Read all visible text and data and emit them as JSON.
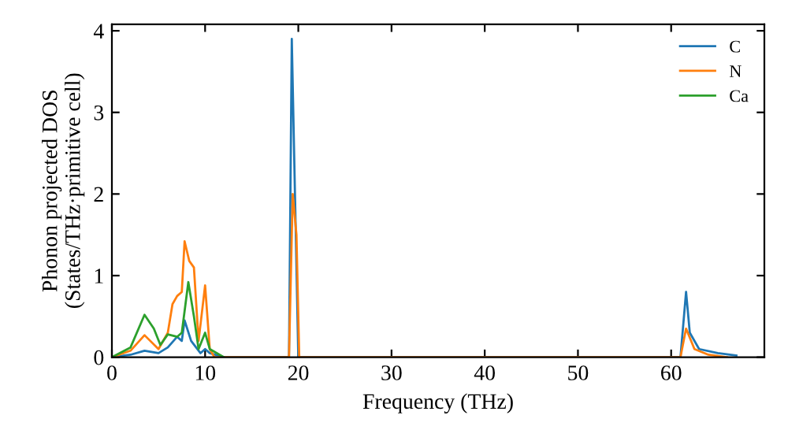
{
  "chart_data": {
    "type": "line",
    "xlabel": "Frequency (THz)",
    "ylabel": "Phonon projected DOS\n(States/THz·primitive cell)",
    "xlim": [
      0,
      70
    ],
    "ylim": [
      0,
      4.08
    ],
    "xticks": [
      0,
      10,
      20,
      30,
      40,
      50,
      60
    ],
    "yticks": [
      0,
      1,
      2,
      3,
      4
    ],
    "legend": "top right",
    "grid": false,
    "series": [
      {
        "name": "C",
        "color": "#1f77b4",
        "x": [
          0,
          2,
          3.5,
          5,
          6,
          7,
          7.5,
          7.8,
          8.5,
          9.5,
          10,
          10.5,
          12,
          19,
          19.3,
          20,
          61,
          61.6,
          62,
          63,
          65,
          67
        ],
        "values": [
          0,
          0.03,
          0.08,
          0.05,
          0.12,
          0.25,
          0.2,
          0.45,
          0.2,
          0.05,
          0.1,
          0.05,
          0,
          0,
          3.9,
          0,
          0,
          0.8,
          0.3,
          0.1,
          0.05,
          0.02
        ]
      },
      {
        "name": "N",
        "color": "#ff7f0e",
        "x": [
          0,
          2,
          3.5,
          5,
          6,
          6.5,
          7,
          7.5,
          7.8,
          8.3,
          8.8,
          9.3,
          10,
          10.5,
          11,
          19,
          19.4,
          19.8,
          20.1,
          61,
          61.6,
          62.5,
          64,
          66
        ],
        "values": [
          0,
          0.08,
          0.27,
          0.1,
          0.3,
          0.65,
          0.75,
          0.8,
          1.42,
          1.18,
          1.1,
          0.2,
          0.88,
          0.1,
          0,
          0,
          2.0,
          1.5,
          0,
          0,
          0.35,
          0.1,
          0.03,
          0
        ]
      },
      {
        "name": "Ca",
        "color": "#2ca02c",
        "x": [
          0,
          2,
          3.5,
          4.5,
          5.2,
          6,
          7,
          7.5,
          8.2,
          8.8,
          9.3,
          10,
          10.5,
          12
        ],
        "values": [
          0,
          0.12,
          0.52,
          0.35,
          0.15,
          0.28,
          0.25,
          0.3,
          0.92,
          0.5,
          0.1,
          0.3,
          0.1,
          0
        ]
      }
    ]
  }
}
